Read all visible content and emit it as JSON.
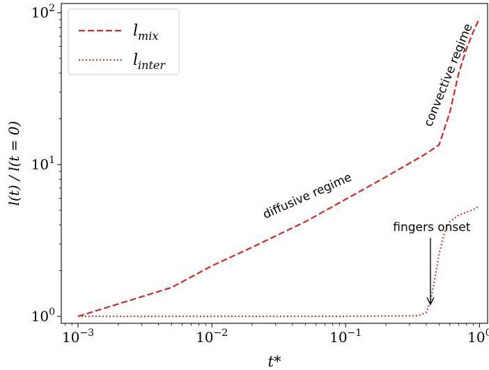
{
  "chart_data": {
    "type": "line",
    "xscale": "log",
    "yscale": "log",
    "xlim": [
      0.00075,
      1.15
    ],
    "ylim": [
      0.9,
      115
    ],
    "xlabel": "t*",
    "ylabel": "l(t) / l(t = 0)",
    "xticks": [
      {
        "value": 0.001,
        "base": "10",
        "exp": "−3"
      },
      {
        "value": 0.01,
        "base": "10",
        "exp": "−2"
      },
      {
        "value": 0.1,
        "base": "10",
        "exp": "−1"
      },
      {
        "value": 1,
        "base": "10",
        "exp": "0"
      }
    ],
    "yticks": [
      {
        "value": 1,
        "base": "10",
        "exp": "0"
      },
      {
        "value": 10,
        "base": "10",
        "exp": "1"
      },
      {
        "value": 100,
        "base": "10",
        "exp": "2"
      }
    ],
    "legend": "top-left",
    "grid": false,
    "series": [
      {
        "name": "l_mix",
        "label_main": "l",
        "label_sub": "mix",
        "color": "#d62728",
        "style": "dashed",
        "x": [
          0.001,
          0.005,
          0.01,
          0.02,
          0.05,
          0.1,
          0.2,
          0.4,
          0.5,
          0.6,
          0.7,
          0.8,
          0.9,
          1.0
        ],
        "y": [
          1.0,
          1.55,
          2.15,
          2.85,
          4.2,
          5.9,
          8.3,
          11.8,
          13.5,
          22,
          40,
          58,
          75,
          92
        ]
      },
      {
        "name": "l_inter",
        "label_main": "l",
        "label_sub": "inter",
        "color": "#d62728",
        "style": "dotted",
        "x": [
          0.001,
          0.01,
          0.1,
          0.35,
          0.4,
          0.43,
          0.46,
          0.5,
          0.55,
          0.6,
          0.7,
          0.8,
          0.9,
          1.0
        ],
        "y": [
          1.0,
          1.0,
          1.0,
          1.01,
          1.06,
          1.25,
          1.7,
          2.6,
          3.6,
          4.2,
          4.65,
          4.85,
          5.05,
          5.35
        ]
      }
    ],
    "annotations": [
      {
        "text": "diffusive regime",
        "x": 0.053,
        "y": 5.9,
        "angle": -24
      },
      {
        "text": "convective regime",
        "x": 0.62,
        "y": 38,
        "angle": -68
      },
      {
        "text": "fingers onset",
        "x": 0.44,
        "y": 3.65,
        "arrow_to": [
          0.43,
          1.2
        ]
      }
    ]
  }
}
